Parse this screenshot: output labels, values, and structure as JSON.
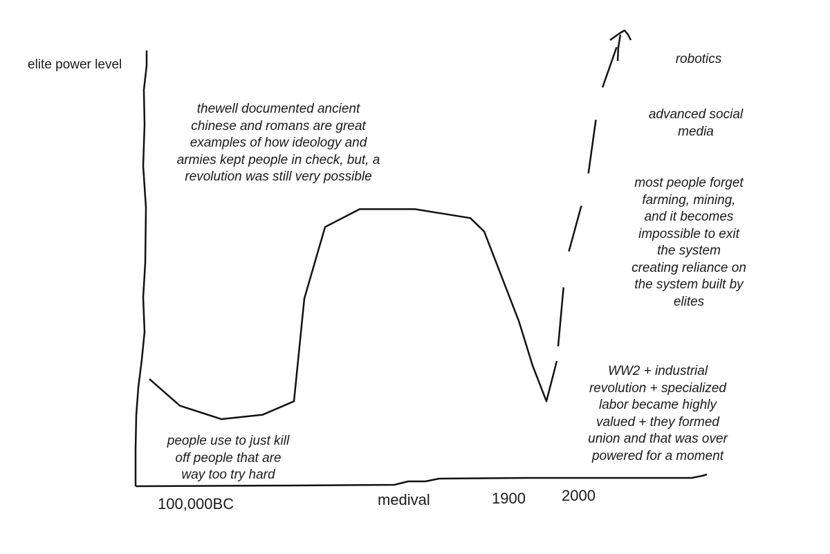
{
  "chart_data": {
    "type": "line",
    "title": "",
    "ylabel": "elite power level",
    "xlabel": "",
    "x_tick_labels": [
      "100,000BC",
      "medival",
      "1900",
      "2000"
    ],
    "series": [
      {
        "name": "elite power level",
        "values_relative": [
          0.22,
          0.16,
          0.13,
          0.14,
          0.17,
          0.4,
          0.56,
          0.6,
          0.6,
          0.58,
          0.55,
          0.45,
          0.35,
          0.25,
          0.17,
          0.26,
          0.48,
          0.65,
          0.85,
          1.0
        ],
        "trailing_arrow": true
      }
    ],
    "annotations": [
      "thewell documented ancient chinese and romans are great examples of how ideology and armies kept people in check, but, a revolution was still very possible",
      "people use to just kill off people that are way too try hard",
      "WW2 + industrial revolution + specialized labor became highly valued + they formed union and that was over powered for a moment",
      "most people forget farming, mining, and it becomes impossible to exit the system creating reliance on the system built by elites",
      "advanced social media",
      "robotics"
    ]
  },
  "texts": {
    "ylabel": "elite power level",
    "ann_ancient_l1": "thewell documented ancient",
    "ann_ancient_l2": "chinese and romans are great",
    "ann_ancient_l3": "examples of how ideology and",
    "ann_ancient_l4": "armies kept people in check, but, a",
    "ann_ancient_l5": "revolution was still very possible",
    "ann_kill_l1": "people use to just kill",
    "ann_kill_l2": "off people that are",
    "ann_kill_l3": "way too try hard",
    "ann_ww2_l1": "WW2 + industrial",
    "ann_ww2_l2": "revolution + specialized",
    "ann_ww2_l3": "labor became highly",
    "ann_ww2_l4": "valued + they formed",
    "ann_ww2_l5": "union and that was over",
    "ann_ww2_l6": "powered for a moment",
    "ann_forget_l1": "most people forget",
    "ann_forget_l2": "farming, mining,",
    "ann_forget_l3": "and it becomes",
    "ann_forget_l4": "impossible to exit",
    "ann_forget_l5": "the system",
    "ann_forget_l6": "creating reliance on",
    "ann_forget_l7": "the system built by",
    "ann_forget_l8": "elites",
    "ann_social_l1": "advanced social",
    "ann_social_l2": "media",
    "ann_robotics": "robotics",
    "tick_1": "100,000BC",
    "tick_2": "medival",
    "tick_3": "1900",
    "tick_4": "2000"
  },
  "colors": {
    "ink": "#111111",
    "background": "#ffffff"
  }
}
